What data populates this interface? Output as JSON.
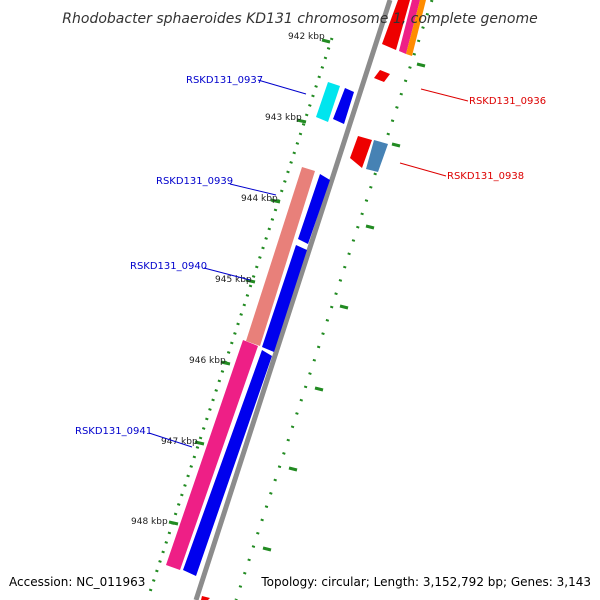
{
  "title": "Rhodobacter sphaeroides KD131 chromosome 1, complete genome",
  "accession": "Accession: NC_011963",
  "summary": "Topology: circular; Length: 3,152,792 bp; Genes: 3,143",
  "colors": {
    "backbone": "#8c8c8c",
    "tick": "#228b22",
    "label_forward": "#0000cc",
    "label_reverse": "#dd0000"
  },
  "kbp_labels": [
    "942 kbp",
    "943 kbp",
    "944 kbp",
    "945 kbp",
    "946 kbp",
    "947 kbp",
    "948 kbp"
  ],
  "gene_labels": {
    "rskd131_0937": "RSKD131_0937",
    "rskd131_0936": "RSKD131_0936",
    "rskd131_0938": "RSKD131_0938",
    "rskd131_0939": "RSKD131_0939",
    "rskd131_0940": "RSKD131_0940",
    "rskd131_0941": "RSKD131_0941"
  }
}
